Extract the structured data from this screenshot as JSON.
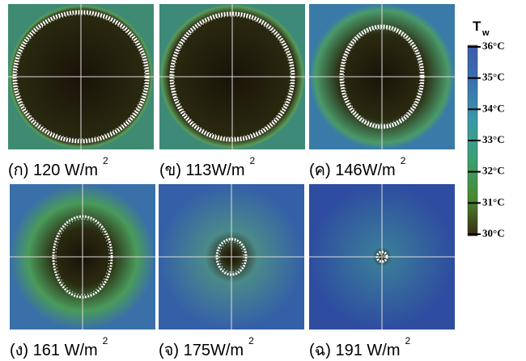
{
  "panels": [
    {
      "label": "(ก) 120 W/m",
      "exponent": "2"
    },
    {
      "label": "(ข) 113W/m",
      "exponent": "2"
    },
    {
      "label": "(ค) 146W/m",
      "exponent": "2"
    },
    {
      "label": "(ง) 161 W/m",
      "exponent": "2"
    },
    {
      "label": "(จ) 175W/m",
      "exponent": "2"
    },
    {
      "label": "(ฉ) 191 W/m",
      "exponent": "2"
    }
  ],
  "colorbar": {
    "title": "T",
    "title_subscript": "w",
    "ticks": [
      "36°C",
      "35°C",
      "34°C",
      "33°C",
      "32°C",
      "31°C",
      "30°C"
    ]
  }
}
